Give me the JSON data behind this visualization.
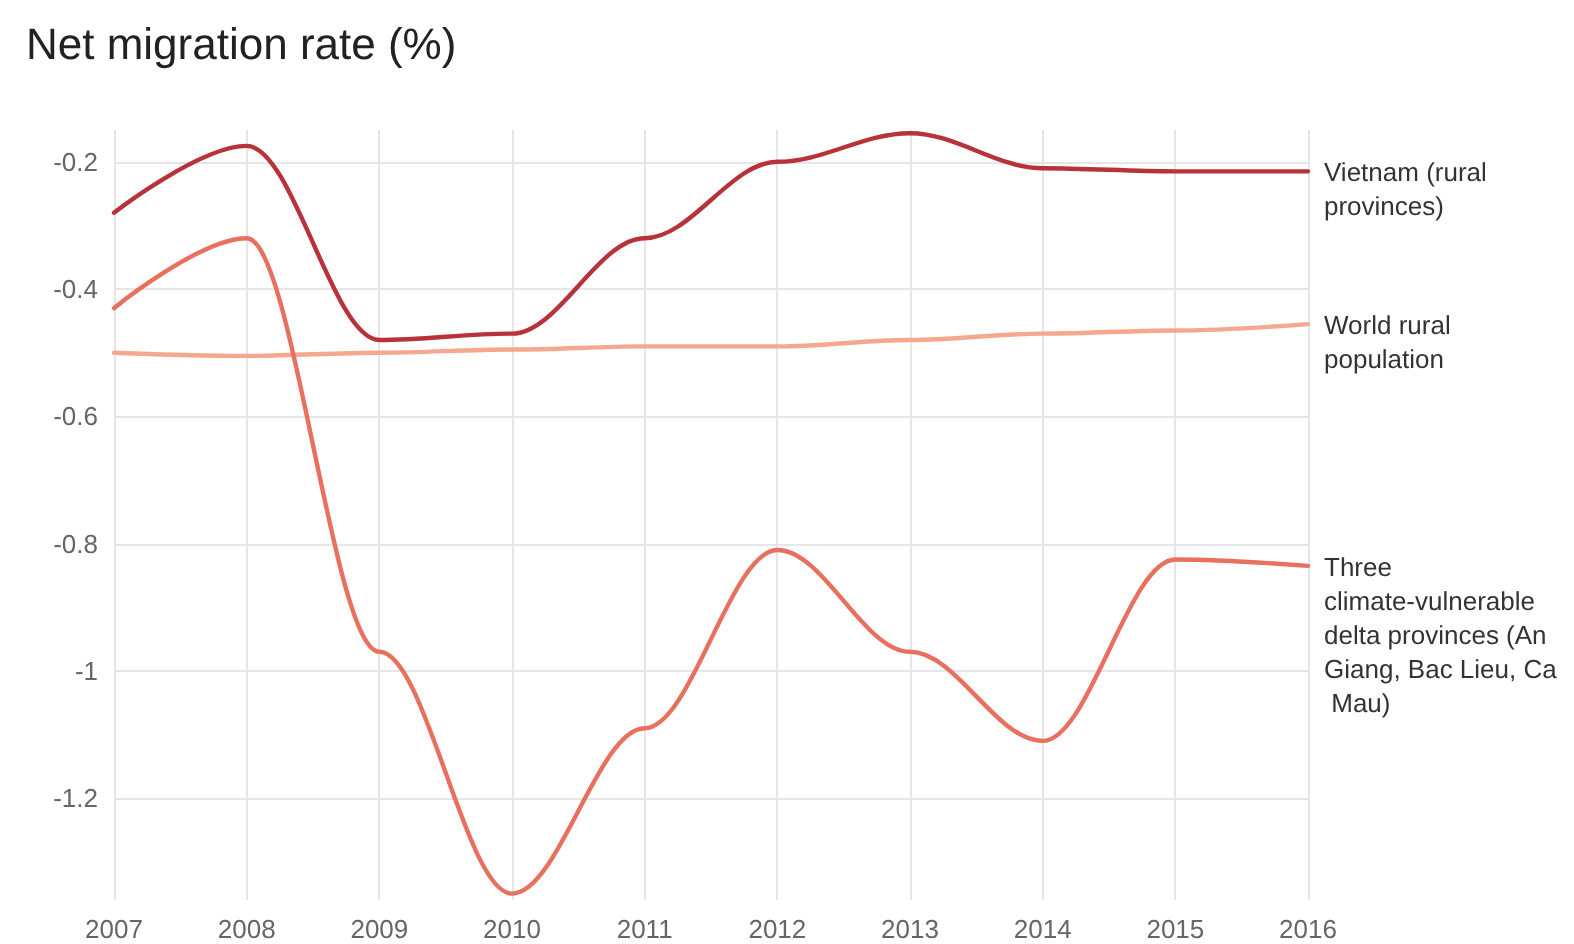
{
  "chart_data": {
    "type": "line",
    "title": "Net migration rate (%)",
    "categories": [
      "2007",
      "2008",
      "2009",
      "2010",
      "2011",
      "2012",
      "2013",
      "2014",
      "2015",
      "2016"
    ],
    "series": [
      {
        "name": "Vietnam (rural provinces)",
        "color": "#b8323a",
        "values": [
          -0.28,
          -0.175,
          -0.48,
          -0.47,
          -0.32,
          -0.2,
          -0.155,
          -0.21,
          -0.215,
          -0.215
        ]
      },
      {
        "name": "World rural population",
        "color": "#f4a88f",
        "values": [
          -0.5,
          -0.505,
          -0.5,
          -0.495,
          -0.49,
          -0.49,
          -0.48,
          -0.47,
          -0.465,
          -0.455
        ]
      },
      {
        "name": "Three climate-vulnerable delta provinces (An Giang, Bac Lieu, Ca Mau)",
        "color": "#e8705f",
        "values": [
          -0.43,
          -0.32,
          -0.97,
          -1.35,
          -1.09,
          -0.81,
          -0.97,
          -1.11,
          -0.825,
          -0.835
        ]
      }
    ],
    "ylim": [
      -1.36,
      -0.15
    ],
    "yticks": [
      -1.2,
      -1,
      -0.8,
      -0.6,
      -0.4,
      -0.2
    ],
    "grid": true,
    "legend": false,
    "marker": "none",
    "line_style": "solid"
  }
}
